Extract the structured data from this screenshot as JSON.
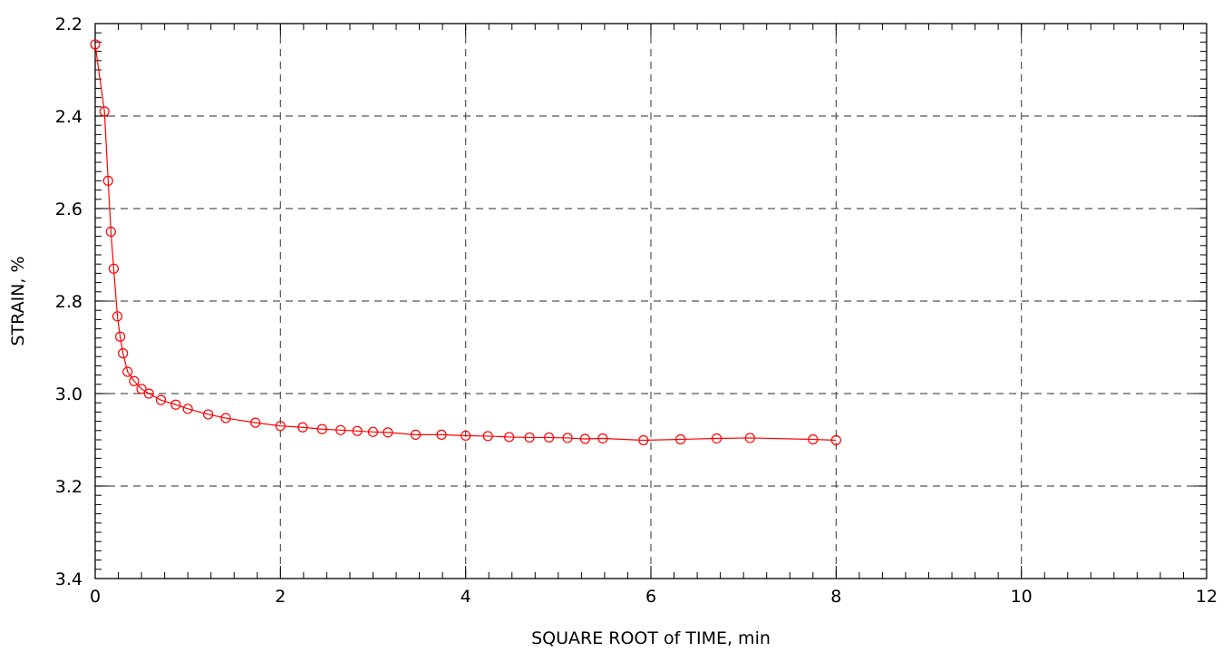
{
  "chart_data": {
    "type": "line",
    "title": "",
    "xlabel": "SQUARE ROOT of TIME, min",
    "ylabel": "STRAIN, %",
    "xlim": [
      0,
      12
    ],
    "ylim": [
      2.2,
      3.4
    ],
    "y_inverted": true,
    "grid": true,
    "x_ticks": [
      0,
      2,
      4,
      6,
      8,
      10,
      12
    ],
    "x_tick_labels": [
      "0",
      "2",
      "4",
      "6",
      "8",
      "10",
      "12"
    ],
    "y_ticks": [
      2.2,
      2.4,
      2.6,
      2.8,
      3.0,
      3.2,
      3.4
    ],
    "y_tick_labels": [
      "2.2",
      "2.4",
      "2.6",
      "2.8",
      "3.0",
      "3.2",
      "3.4"
    ],
    "colors": {
      "series": "#ff0000",
      "grid": "#555555",
      "axis": "#000000"
    },
    "series": [
      {
        "marker": "circle",
        "x": [
          0,
          0.1,
          0.14,
          0.17,
          0.2,
          0.24,
          0.27,
          0.3,
          0.35,
          0.42,
          0.5,
          0.58,
          0.71,
          0.87,
          1.0,
          1.22,
          1.41,
          1.73,
          2.0,
          2.24,
          2.45,
          2.65,
          2.83,
          3.0,
          3.16,
          3.46,
          3.74,
          4.0,
          4.24,
          4.47,
          4.69,
          4.9,
          5.1,
          5.29,
          5.48,
          5.92,
          6.32,
          6.71,
          7.07,
          7.75,
          8.0
        ],
        "y": [
          2.245,
          2.39,
          2.54,
          2.65,
          2.73,
          2.833,
          2.877,
          2.913,
          2.953,
          2.973,
          2.99,
          3.0,
          3.014,
          3.024,
          3.033,
          3.045,
          3.053,
          3.063,
          3.07,
          3.073,
          3.077,
          3.079,
          3.081,
          3.083,
          3.084,
          3.089,
          3.089,
          3.091,
          3.092,
          3.094,
          3.095,
          3.095,
          3.096,
          3.098,
          3.097,
          3.101,
          3.099,
          3.097,
          3.096,
          3.099,
          3.101
        ]
      }
    ]
  }
}
